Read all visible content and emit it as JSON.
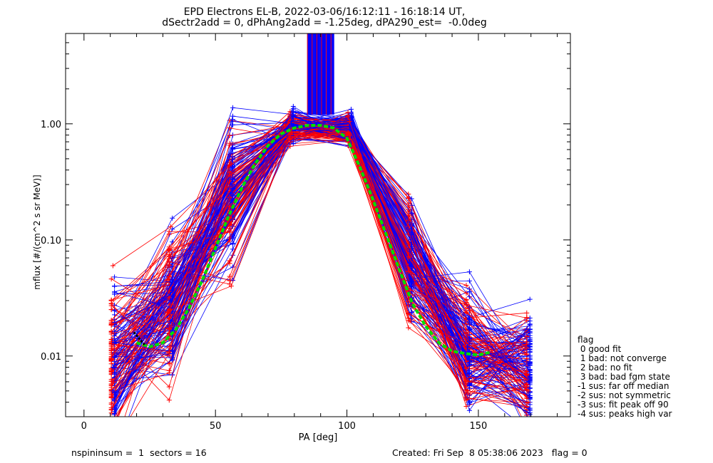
{
  "header": {
    "title_line1": "EPD Electrons EL-B, 2022-03-06/16:12:11 - 16:18:14 UT,",
    "title_line2": "dSectr2add = 0, dPhAng2add = -1.25deg, dPA290_est=  -0.0deg"
  },
  "footer": {
    "left": "nspininsum =  1  sectors = 16",
    "right": "Created: Fri Sep  8 05:38:06 2023   flag = 0"
  },
  "legend": {
    "title": "flag",
    "items": [
      " 0 good fit",
      " 1 bad: not converge",
      " 2 bad: no fit",
      " 3 bad: bad fgm state",
      "-1 sus: far off median",
      "-2 sus: not symmetric",
      "-3 sus: fit peak off 90",
      "-4 sus: peaks high var"
    ]
  },
  "colors": {
    "fit_red": "#ff0000",
    "fit_blue": "#0000ff",
    "median_green": "#00dd00",
    "axis": "#000000"
  },
  "chart_data": {
    "type": "line",
    "xlabel": "PA [deg]",
    "ylabel": "mflux [#/(cm^2 s sr MeV)]",
    "xlim": [
      -7,
      185
    ],
    "ylim": [
      0.003,
      6.0
    ],
    "yscale": "log",
    "x_ticks": [
      0,
      50,
      100,
      150
    ],
    "y_ticks": [
      0.01,
      0.1,
      1.0
    ],
    "y_tick_labels": [
      "0.01",
      "0.10",
      "1.00"
    ],
    "pitch_angle_bins": [
      11,
      33,
      56,
      79,
      101,
      124,
      146,
      169
    ],
    "representative_series": [
      {
        "color": "blue",
        "x": [
          11,
          33,
          56,
          79,
          101,
          124,
          146,
          169
        ],
        "y": [
          0.008,
          0.03,
          0.3,
          0.98,
          0.95,
          0.08,
          0.012,
          0.008
        ]
      },
      {
        "color": "blue",
        "x": [
          11,
          33,
          56,
          79,
          101,
          124,
          146,
          169
        ],
        "y": [
          0.005,
          0.02,
          0.25,
          1.05,
          0.9,
          0.06,
          0.01,
          0.006
        ]
      },
      {
        "color": "red",
        "x": [
          11,
          33,
          56,
          79,
          101,
          124,
          146,
          169
        ],
        "y": [
          0.006,
          0.025,
          0.04,
          0.85,
          0.8,
          0.02,
          0.005,
          0.004
        ]
      },
      {
        "color": "red",
        "x": [
          11,
          33,
          56,
          79,
          101,
          124,
          146,
          169
        ],
        "y": [
          0.06,
          0.13,
          0.45,
          0.9,
          1.05,
          0.03,
          0.006,
          0.005
        ]
      }
    ],
    "median_fit": {
      "x": [
        20,
        25,
        30,
        35,
        40,
        45,
        50,
        55,
        60,
        65,
        70,
        75,
        80,
        85,
        90,
        95,
        100,
        105,
        110,
        115,
        120,
        125,
        130,
        135,
        140,
        145,
        150,
        155
      ],
      "y": [
        0.013,
        0.012,
        0.013,
        0.017,
        0.026,
        0.045,
        0.085,
        0.16,
        0.28,
        0.45,
        0.65,
        0.82,
        0.92,
        0.97,
        0.97,
        0.92,
        0.75,
        0.42,
        0.22,
        0.11,
        0.055,
        0.028,
        0.018,
        0.013,
        0.011,
        0.0105,
        0.0102,
        0.0108
      ]
    }
  }
}
